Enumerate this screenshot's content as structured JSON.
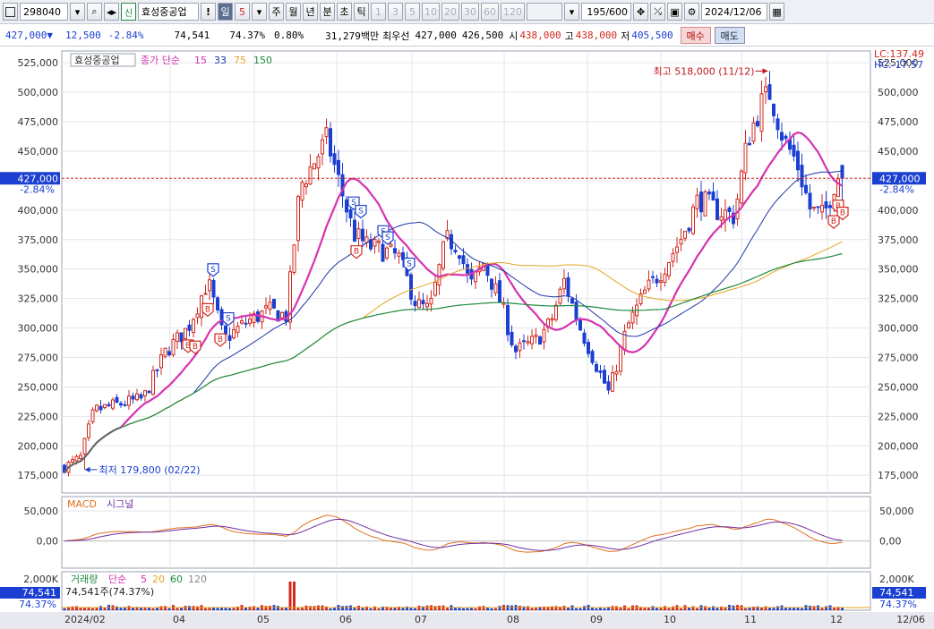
{
  "toolbar": {
    "code": "298040",
    "stock_name": "효성중공업",
    "badge_sin": "신",
    "alert": "!",
    "period_unit": "일",
    "period_value": "5",
    "period_tabs": [
      "주",
      "월",
      "년",
      "분",
      "초",
      "틱"
    ],
    "minute_buttons": [
      "1",
      "3",
      "5",
      "10",
      "20",
      "30",
      "60",
      "120"
    ],
    "bar_count": "195",
    "bar_total": "/600",
    "date": "2024/12/06"
  },
  "quote": {
    "price": "427,000",
    "direction": "▼",
    "change": "12,500",
    "change_pct": "-2.84%",
    "volume": "74,541",
    "volume_ratio": "74.37%",
    "turnover": "0.80%",
    "amount": "31,279백만",
    "best_label": "최우선",
    "ask": "427,000",
    "bid": "426,500",
    "open_label": "시",
    "open": "438,000",
    "high_label": "고",
    "high": "438,000",
    "low_label": "저",
    "low": "405,500",
    "buy_button": "매수",
    "sell_button": "매도"
  },
  "price_panel": {
    "legend_name": "효성중공업",
    "legend_ma": "종가 단순",
    "ma_periods": [
      "15",
      "33",
      "75",
      "150"
    ],
    "ma_colors": [
      "#d633b0",
      "#1f35a8",
      "#e5a522",
      "#1e8a3c"
    ],
    "lc_label": "LC:137.49",
    "hc_label": "HC:-17.57",
    "current_tag": "427,000",
    "current_pct": "-2.84%",
    "high_note": "최고 518,000 (11/12)",
    "low_note": "최저 179,800 (02/22)",
    "y_ticks": [
      "525,000",
      "500,000",
      "475,000",
      "450,000",
      "425,000",
      "400,000",
      "375,000",
      "350,000",
      "325,000",
      "300,000",
      "275,000",
      "250,000",
      "225,000",
      "200,000",
      "175,000"
    ],
    "up_color": "#d2281e",
    "down_color": "#1a3fd1"
  },
  "macd_panel": {
    "label_macd": "MACD",
    "label_signal": "시그널",
    "y_ticks": [
      "50,000",
      "0,00"
    ],
    "macd_color": "#e07020",
    "signal_color": "#7030a0"
  },
  "volume_panel": {
    "label": "거래량",
    "ma_label": "단순",
    "ma_periods": [
      "5",
      "20",
      "60",
      "120"
    ],
    "ma_colors": [
      "#d633b0",
      "#e5a522",
      "#1e8a3c",
      "#888888"
    ],
    "readout": "74,541주(74.37%)",
    "y_tick": "2,000K",
    "current_tag": "74,541",
    "current_pct": "74.37%"
  },
  "x_axis": {
    "labels": [
      "2024/02",
      "04",
      "05",
      "06",
      "07",
      "08",
      "09",
      "10",
      "11",
      "12",
      "12/06"
    ]
  },
  "chart_data": {
    "type": "candlestick",
    "title": "효성중공업",
    "y_range": [
      160000,
      535000
    ],
    "date_range": [
      "2024/02",
      "2024/12/06"
    ],
    "highest": {
      "price": 518000,
      "date": "11/12"
    },
    "lowest": {
      "price": 179800,
      "date": "02/22"
    },
    "last": {
      "price": 427000,
      "open": 438000,
      "high": 438000,
      "low": 405500,
      "change": -12500,
      "change_pct": -2.84,
      "volume": 74541
    },
    "close_series_approx": [
      {
        "month": "02",
        "close": 185000
      },
      {
        "month": "03",
        "close": 245000
      },
      {
        "month": "04",
        "close": 305000
      },
      {
        "month": "05",
        "close": 330000
      },
      {
        "month": "06",
        "close": 440000
      },
      {
        "month": "07",
        "close": 365000
      },
      {
        "month": "08",
        "close": 285000
      },
      {
        "month": "09",
        "close": 260000
      },
      {
        "month": "10",
        "close": 360000
      },
      {
        "month": "11",
        "close": 470000
      },
      {
        "month": "12",
        "close": 427000
      }
    ],
    "moving_averages": [
      {
        "name": "15",
        "last": 425000
      },
      {
        "name": "33",
        "last": 425000
      },
      {
        "name": "75",
        "last": 374000
      },
      {
        "name": "150",
        "last": 362000
      }
    ]
  }
}
